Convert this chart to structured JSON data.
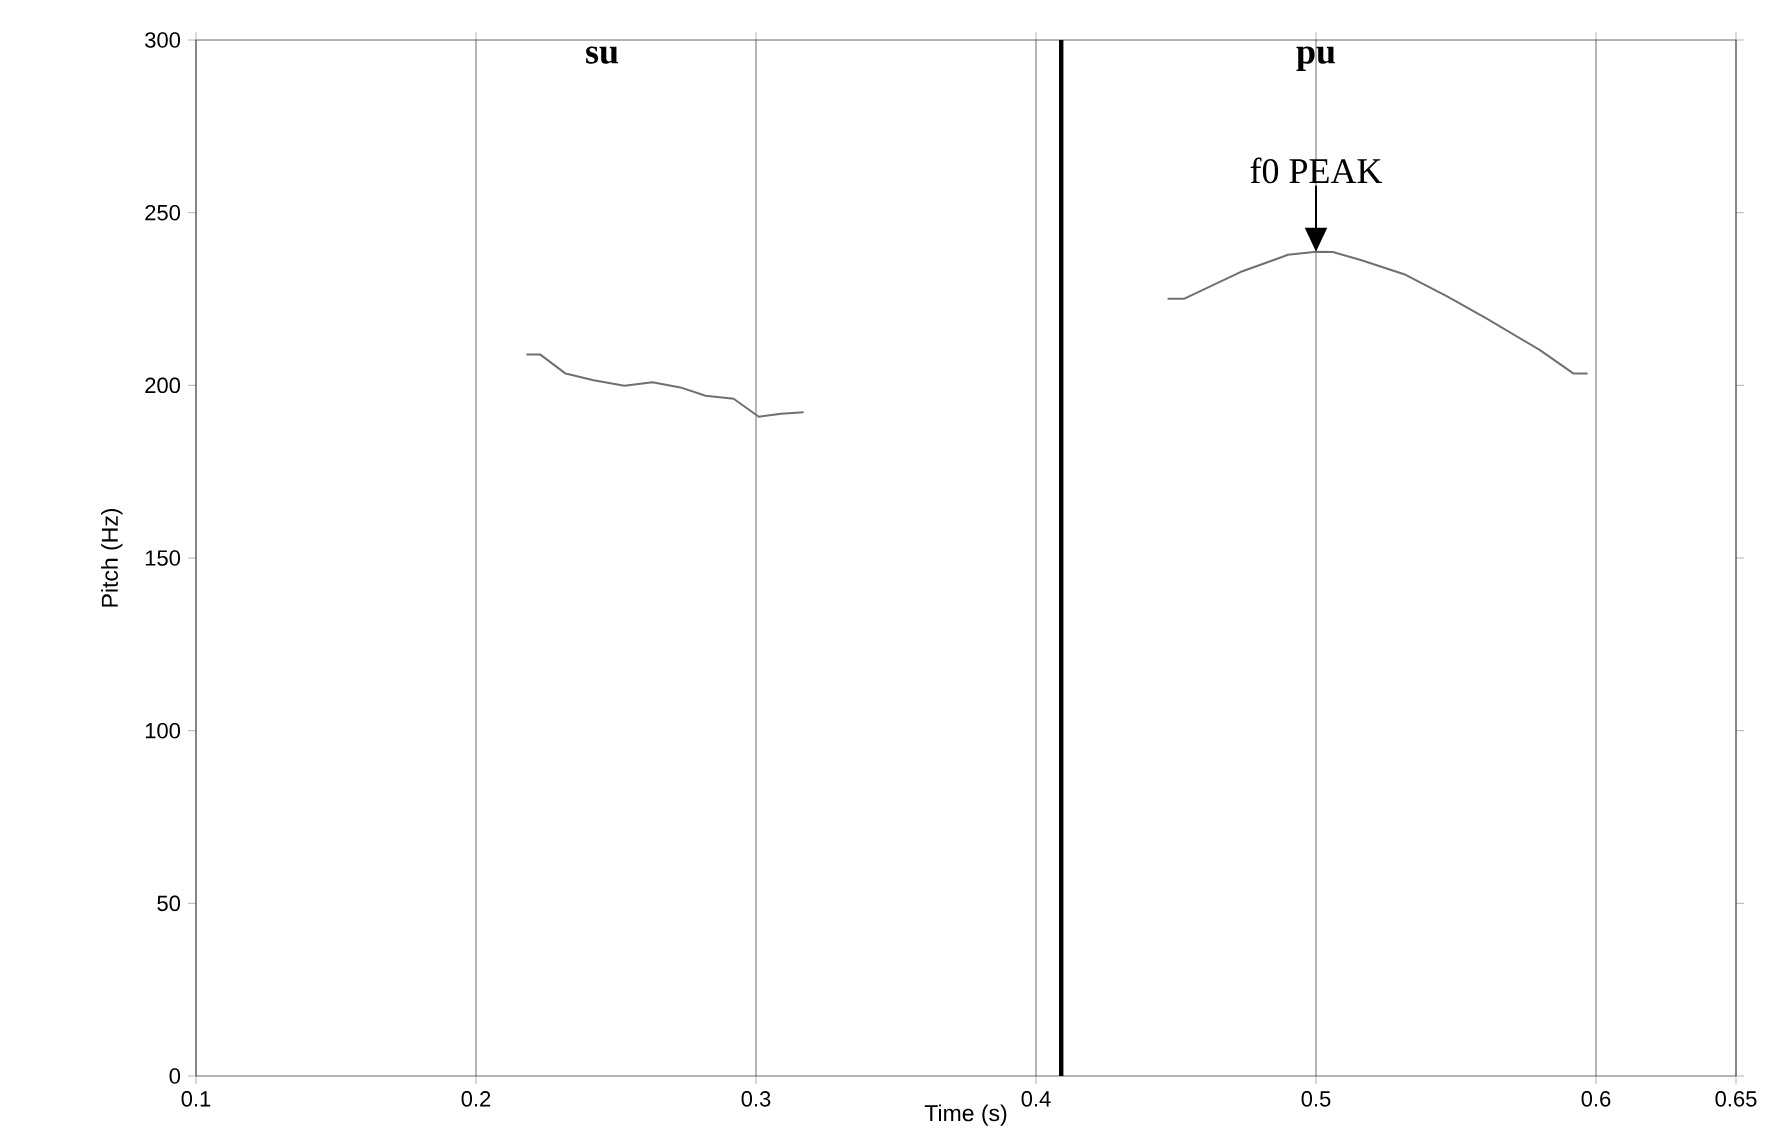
{
  "chart_data": {
    "type": "line",
    "xlabel": "Time (s)",
    "ylabel": "Pitch (Hz)",
    "xlim": [
      0.1,
      0.65
    ],
    "ylim": [
      0,
      300
    ],
    "xticks": [
      0.1,
      0.2,
      0.3,
      0.4,
      0.5,
      0.6,
      0.65
    ],
    "yticks": [
      0,
      50,
      100,
      150,
      200,
      250,
      300
    ],
    "grid": "x",
    "series": [
      {
        "color": "#707070",
        "x": [
          0.218,
          0.223,
          0.232,
          0.242,
          0.253,
          0.263,
          0.273,
          0.282,
          0.292,
          0.301,
          0.309,
          0.317
        ],
        "values": [
          208.9,
          208.9,
          203.4,
          201.5,
          199.9,
          200.9,
          199.4,
          197.0,
          196.1,
          190.9,
          191.8,
          192.2
        ]
      },
      {
        "color": "#707070",
        "x": [
          0.447,
          0.453,
          0.473,
          0.49,
          0.5,
          0.506,
          0.516,
          0.532,
          0.547,
          0.561,
          0.58,
          0.592,
          0.597
        ],
        "values": [
          225.1,
          225.1,
          232.8,
          237.8,
          238.7,
          238.6,
          236.3,
          232.0,
          225.7,
          219.3,
          210.2,
          203.4,
          203.4
        ]
      }
    ],
    "ref_lines": [
      {
        "axis": "x",
        "value": 0.409,
        "color": "#000000"
      }
    ],
    "annotations": [
      "**su**",
      "**pu**",
      {
        "text": "f0 PEAK",
        "x": 0.5,
        "y": 238.7
      }
    ]
  }
}
